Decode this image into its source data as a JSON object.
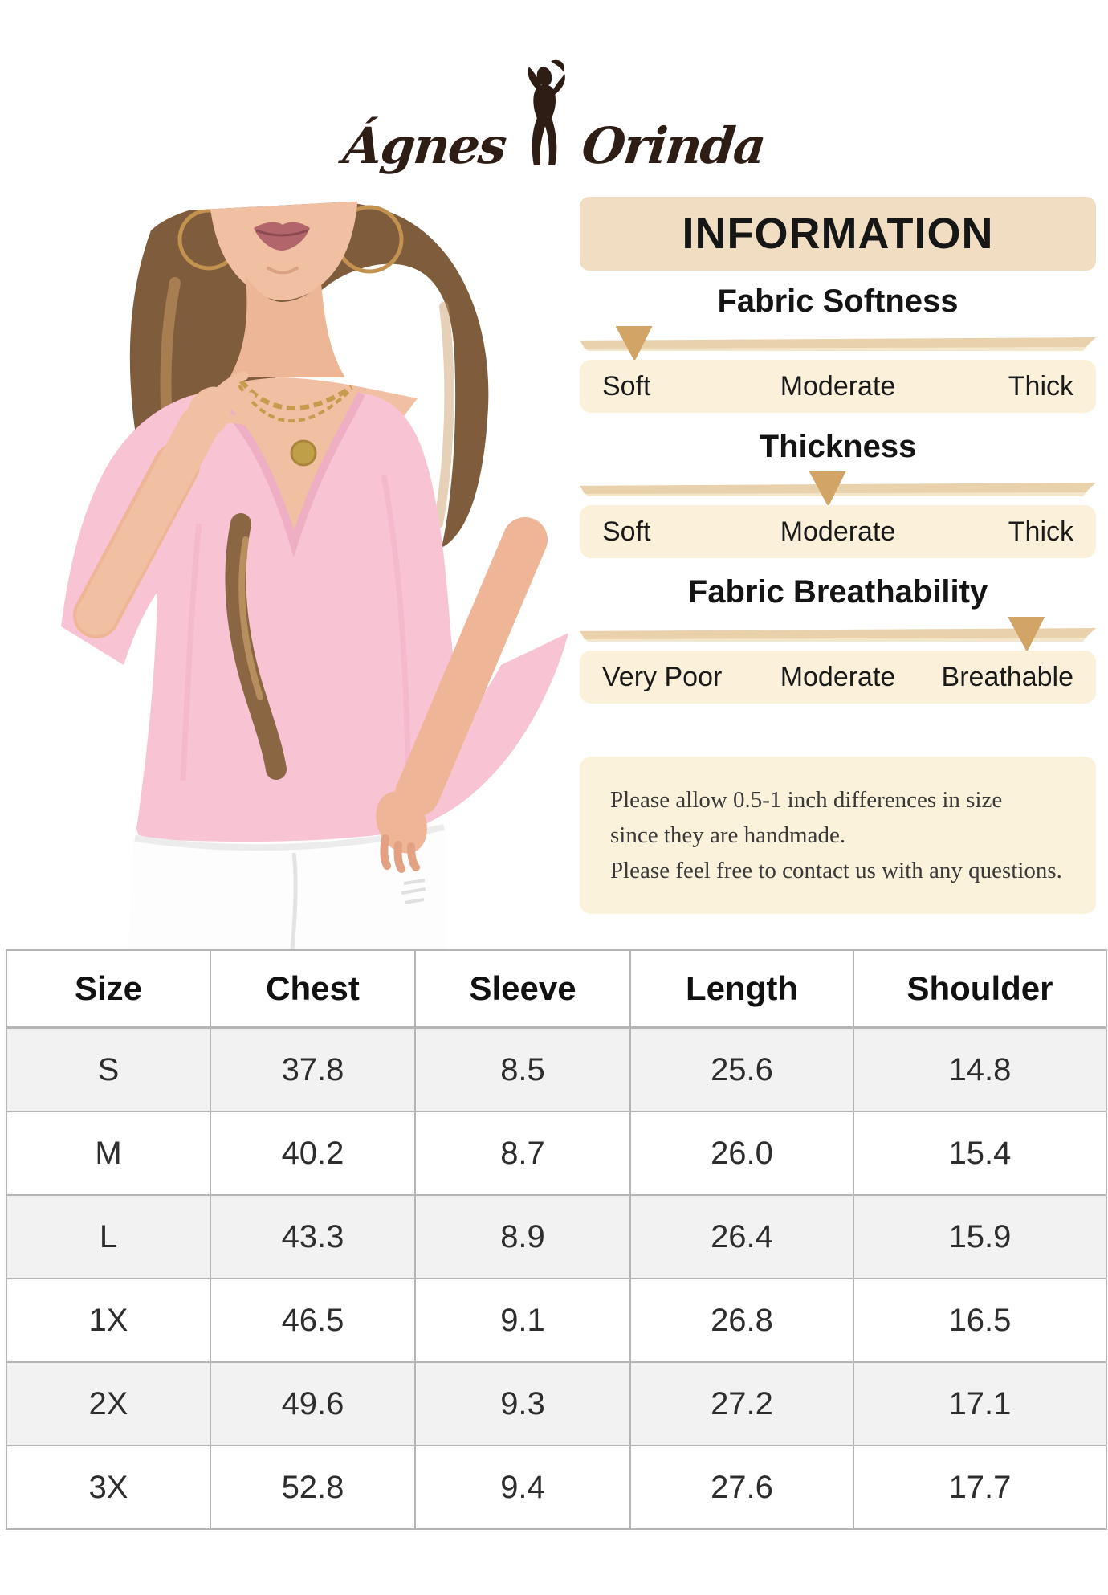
{
  "brand": {
    "name_left": "Ágnes",
    "name_right": "Orinda"
  },
  "info": {
    "header": "INFORMATION",
    "scales": [
      {
        "title": "Fabric Softness",
        "labels": [
          "Soft",
          "Moderate",
          "Thick"
        ],
        "marker_percent": 10.5,
        "marker_over_label": "Soft"
      },
      {
        "title": "Thickness",
        "labels": [
          "Soft",
          "Moderate",
          "Thick"
        ],
        "marker_percent": 48,
        "marker_over_label": "Moderate"
      },
      {
        "title": "Fabric Breathability",
        "labels": [
          "Very Poor",
          "Moderate",
          "Breathable"
        ],
        "marker_percent": 86.5,
        "marker_over_label": "Breathable"
      }
    ],
    "note_lines": [
      "Please allow 0.5-1 inch differences in size",
      "since they are handmade.",
      "Please feel free to contact us with any questions."
    ]
  },
  "size_table": {
    "headers": [
      "Size",
      "Chest",
      "Sleeve",
      "Length",
      "Shoulder"
    ],
    "rows": [
      [
        "S",
        "37.8",
        "8.5",
        "25.6",
        "14.8"
      ],
      [
        "M",
        "40.2",
        "8.7",
        "26.0",
        "15.4"
      ],
      [
        "L",
        "43.3",
        "8.9",
        "26.4",
        "15.9"
      ],
      [
        "1X",
        "46.5",
        "9.1",
        "26.8",
        "16.5"
      ],
      [
        "2X",
        "49.6",
        "9.3",
        "27.2",
        "17.1"
      ],
      [
        "3X",
        "52.8",
        "9.4",
        "27.6",
        "17.7"
      ]
    ]
  },
  "colors": {
    "banner_bg": "#f0ddc2",
    "scale_bar": "#e9d2ab",
    "marker_triangle": "#d2a466",
    "labels_row_bg": "#fbf1da",
    "note_bg": "#fbf2dc",
    "brand_ink": "#2e1d15",
    "table_border": "#b5b5b5",
    "table_alt_row": "#f2f2f2",
    "shirt_pink": "#f8c4d3"
  }
}
